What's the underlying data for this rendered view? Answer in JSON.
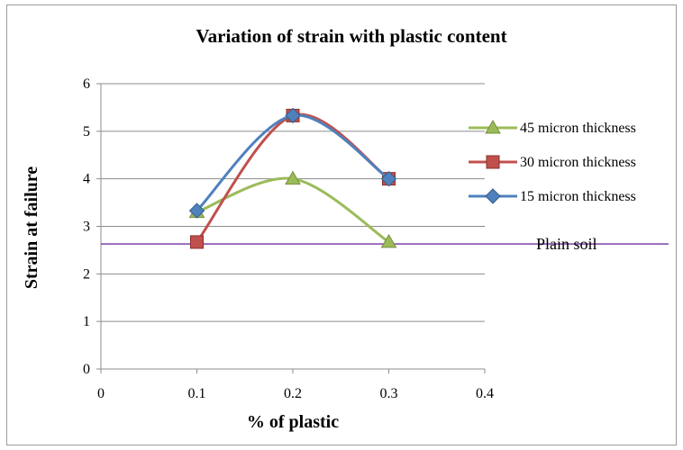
{
  "chart_data": {
    "type": "line",
    "title": "Variation of strain with plastic content",
    "xlabel": "% of plastic",
    "ylabel": "Strain at failure",
    "xlim": [
      0,
      0.4
    ],
    "ylim": [
      0,
      6
    ],
    "x_ticks": [
      "0",
      "0.1",
      "0.2",
      "0.3",
      "0.4"
    ],
    "y_ticks": [
      "0",
      "1",
      "2",
      "3",
      "4",
      "5",
      "6"
    ],
    "grid": "horizontal",
    "legend_position": "right",
    "series": [
      {
        "name": "45 micron thickness",
        "color": "#9bbb59",
        "marker": "triangle",
        "x": [
          0.1,
          0.2,
          0.3
        ],
        "y": [
          3.3,
          4.0,
          2.67
        ]
      },
      {
        "name": "30 micron thickness",
        "color": "#c0504d",
        "marker": "square",
        "x": [
          0.1,
          0.2,
          0.3
        ],
        "y": [
          2.67,
          5.33,
          4.0
        ]
      },
      {
        "name": "15 micron thickness",
        "color": "#4f81bd",
        "marker": "diamond",
        "x": [
          0.1,
          0.2,
          0.3
        ],
        "y": [
          3.33,
          5.33,
          4.0
        ]
      }
    ],
    "reference_line": {
      "label": "Plain soil",
      "y": 2.63,
      "color": "#7030a0"
    }
  }
}
